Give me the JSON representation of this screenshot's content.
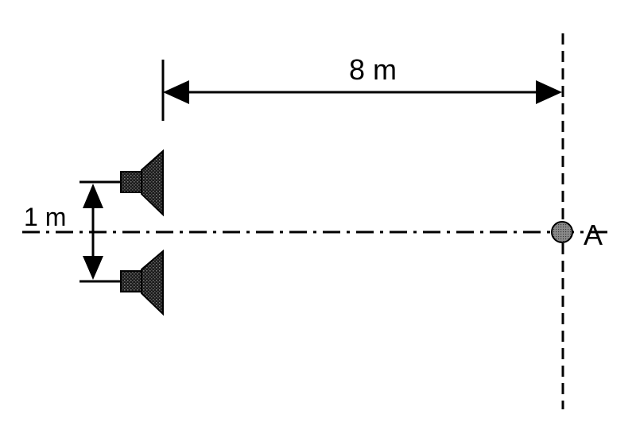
{
  "diagram": {
    "distance_label": "8 m",
    "separation_label": "1 m",
    "point_label": "A",
    "speakers": [
      {
        "name": "upper-speaker"
      },
      {
        "name": "lower-speaker"
      }
    ]
  },
  "colors": {
    "ink": "#000000",
    "speaker_fill": "#1a1a1a",
    "speaker_texture": "#6e6e6e",
    "point_fill": "#7a7a7a"
  }
}
